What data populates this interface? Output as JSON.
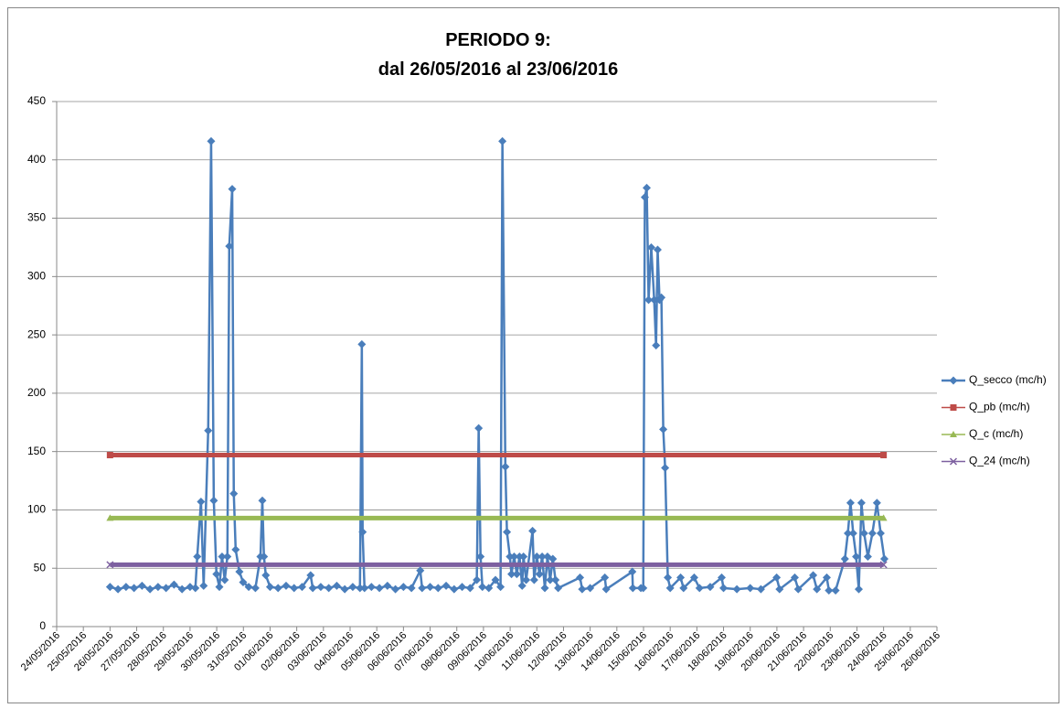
{
  "chart_data": {
    "type": "line",
    "title": [
      "PERIODO 9:",
      "dal 26/05/2016 al 23/06/2016"
    ],
    "xlim": [
      42514,
      42547
    ],
    "xticks": [
      {
        "value": 42514,
        "label": "24/05/2016"
      },
      {
        "value": 42515,
        "label": "25/05/2016"
      },
      {
        "value": 42516,
        "label": "26/05/2016"
      },
      {
        "value": 42517,
        "label": "27/05/2016"
      },
      {
        "value": 42518,
        "label": "28/05/2016"
      },
      {
        "value": 42519,
        "label": "29/05/2016"
      },
      {
        "value": 42520,
        "label": "30/05/2016"
      },
      {
        "value": 42521,
        "label": "31/05/2016"
      },
      {
        "value": 42522,
        "label": "01/06/2016"
      },
      {
        "value": 42523,
        "label": "02/06/2016"
      },
      {
        "value": 42524,
        "label": "03/06/2016"
      },
      {
        "value": 42525,
        "label": "04/06/2016"
      },
      {
        "value": 42526,
        "label": "05/06/2016"
      },
      {
        "value": 42527,
        "label": "06/06/2016"
      },
      {
        "value": 42528,
        "label": "07/06/2016"
      },
      {
        "value": 42529,
        "label": "08/06/2016"
      },
      {
        "value": 42530,
        "label": "09/06/2016"
      },
      {
        "value": 42531,
        "label": "10/06/2016"
      },
      {
        "value": 42532,
        "label": "11/06/2016"
      },
      {
        "value": 42533,
        "label": "12/06/2016"
      },
      {
        "value": 42534,
        "label": "13/06/2016"
      },
      {
        "value": 42535,
        "label": "14/06/2016"
      },
      {
        "value": 42536,
        "label": "15/06/2016"
      },
      {
        "value": 42537,
        "label": "16/06/2016"
      },
      {
        "value": 42538,
        "label": "17/06/2016"
      },
      {
        "value": 42539,
        "label": "18/06/2016"
      },
      {
        "value": 42540,
        "label": "19/06/2016"
      },
      {
        "value": 42541,
        "label": "20/06/2016"
      },
      {
        "value": 42542,
        "label": "21/06/2016"
      },
      {
        "value": 42543,
        "label": "22/06/2016"
      },
      {
        "value": 42544,
        "label": "23/06/2016"
      },
      {
        "value": 42545,
        "label": "24/06/2016"
      },
      {
        "value": 42546,
        "label": "25/06/2016"
      },
      {
        "value": 42547,
        "label": "26/06/2016"
      }
    ],
    "ylim": [
      0,
      450
    ],
    "yticks": [
      0,
      50,
      100,
      150,
      200,
      250,
      300,
      350,
      400,
      450
    ],
    "grid": true,
    "legend": "right",
    "series": [
      {
        "name": "Q_secco (mc/h)",
        "color": "#4a7ebb",
        "marker": "diamond",
        "x": [
          42516.0,
          42516.3,
          42516.6,
          42516.9,
          42517.2,
          42517.5,
          42517.8,
          42518.1,
          42518.4,
          42518.7,
          42519.0,
          42519.2,
          42519.27,
          42519.41,
          42519.51,
          42519.68,
          42519.79,
          42519.89,
          42519.99,
          42520.1,
          42520.2,
          42520.3,
          42520.4,
          42520.47,
          42520.58,
          42520.64,
          42520.71,
          42520.85,
          42520.99,
          42521.2,
          42521.45,
          42521.64,
          42521.71,
          42521.77,
          42521.84,
          42522.0,
          42522.3,
          42522.6,
          42522.9,
          42523.2,
          42523.52,
          42523.6,
          42523.9,
          42524.2,
          42524.5,
          42524.8,
          42525.1,
          42525.37,
          42525.44,
          42525.47,
          42525.54,
          42525.8,
          42526.1,
          42526.4,
          42526.7,
          42527.0,
          42527.3,
          42527.63,
          42527.7,
          42528.0,
          42528.3,
          42528.6,
          42528.9,
          42529.2,
          42529.5,
          42529.75,
          42529.82,
          42529.89,
          42529.96,
          42530.2,
          42530.45,
          42530.64,
          42530.71,
          42530.82,
          42530.88,
          42530.99,
          42531.05,
          42531.15,
          42531.25,
          42531.35,
          42531.45,
          42531.5,
          42531.6,
          42531.84,
          42531.9,
          42532.0,
          42532.1,
          42532.2,
          42532.3,
          42532.4,
          42532.5,
          42532.6,
          42532.7,
          42532.8,
          42533.62,
          42533.7,
          42534.0,
          42534.55,
          42534.6,
          42535.58,
          42535.6,
          42535.9,
          42535.99,
          42536.05,
          42536.12,
          42536.19,
          42536.29,
          42536.4,
          42536.47,
          42536.53,
          42536.6,
          42536.67,
          42536.74,
          42536.81,
          42536.91,
          42537.0,
          42537.39,
          42537.5,
          42537.9,
          42538.1,
          42538.5,
          42538.93,
          42539.0,
          42539.5,
          42540.0,
          42540.4,
          42540.99,
          42541.1,
          42541.67,
          42541.8,
          42542.36,
          42542.5,
          42542.87,
          42542.95,
          42543.2,
          42543.55,
          42543.66,
          42543.76,
          42543.86,
          42543.97,
          42544.07,
          42544.17,
          42544.27,
          42544.41,
          42544.58,
          42544.75,
          42544.89,
          42545.03
        ],
        "values": [
          34,
          32,
          34,
          33,
          35,
          32,
          34,
          33,
          36,
          32,
          34,
          33,
          60,
          107,
          35,
          168,
          416,
          108,
          45,
          34,
          60,
          40,
          60,
          326,
          375,
          114,
          66,
          47,
          38,
          34,
          33,
          60,
          108,
          60,
          44,
          34,
          33,
          35,
          33,
          34,
          44,
          33,
          34,
          33,
          35,
          32,
          34,
          33,
          242,
          81,
          33,
          34,
          33,
          35,
          32,
          34,
          33,
          48,
          33,
          34,
          33,
          35,
          32,
          34,
          33,
          40,
          170,
          60,
          34,
          33,
          40,
          34,
          416,
          137,
          81,
          60,
          45,
          60,
          45,
          60,
          35,
          60,
          40,
          82,
          40,
          60,
          45,
          60,
          33,
          60,
          40,
          58,
          40,
          33,
          42,
          32,
          33,
          42,
          32,
          47,
          33,
          33,
          33,
          368,
          376,
          280,
          325,
          280,
          241,
          323,
          280,
          282,
          169,
          136,
          42,
          33,
          42,
          33,
          42,
          33,
          34,
          42,
          33,
          32,
          33,
          32,
          42,
          32,
          42,
          32,
          44,
          32,
          42,
          31,
          31,
          58,
          80,
          106,
          80,
          60,
          32,
          106,
          80,
          60,
          80,
          106,
          80,
          58
        ]
      },
      {
        "name": "Q_pb (mc/h)",
        "color": "#be4b48",
        "marker": "square",
        "x": [
          42516,
          42545
        ],
        "values": [
          147,
          147
        ]
      },
      {
        "name": "Q_c (mc/h)",
        "color": "#98b954",
        "marker": "triangle",
        "x": [
          42516,
          42545
        ],
        "values": [
          93,
          93
        ]
      },
      {
        "name": "Q_24 (mc/h)",
        "color": "#7d60a0",
        "marker": "cross",
        "x": [
          42516,
          42545
        ],
        "values": [
          53,
          53
        ]
      }
    ]
  }
}
